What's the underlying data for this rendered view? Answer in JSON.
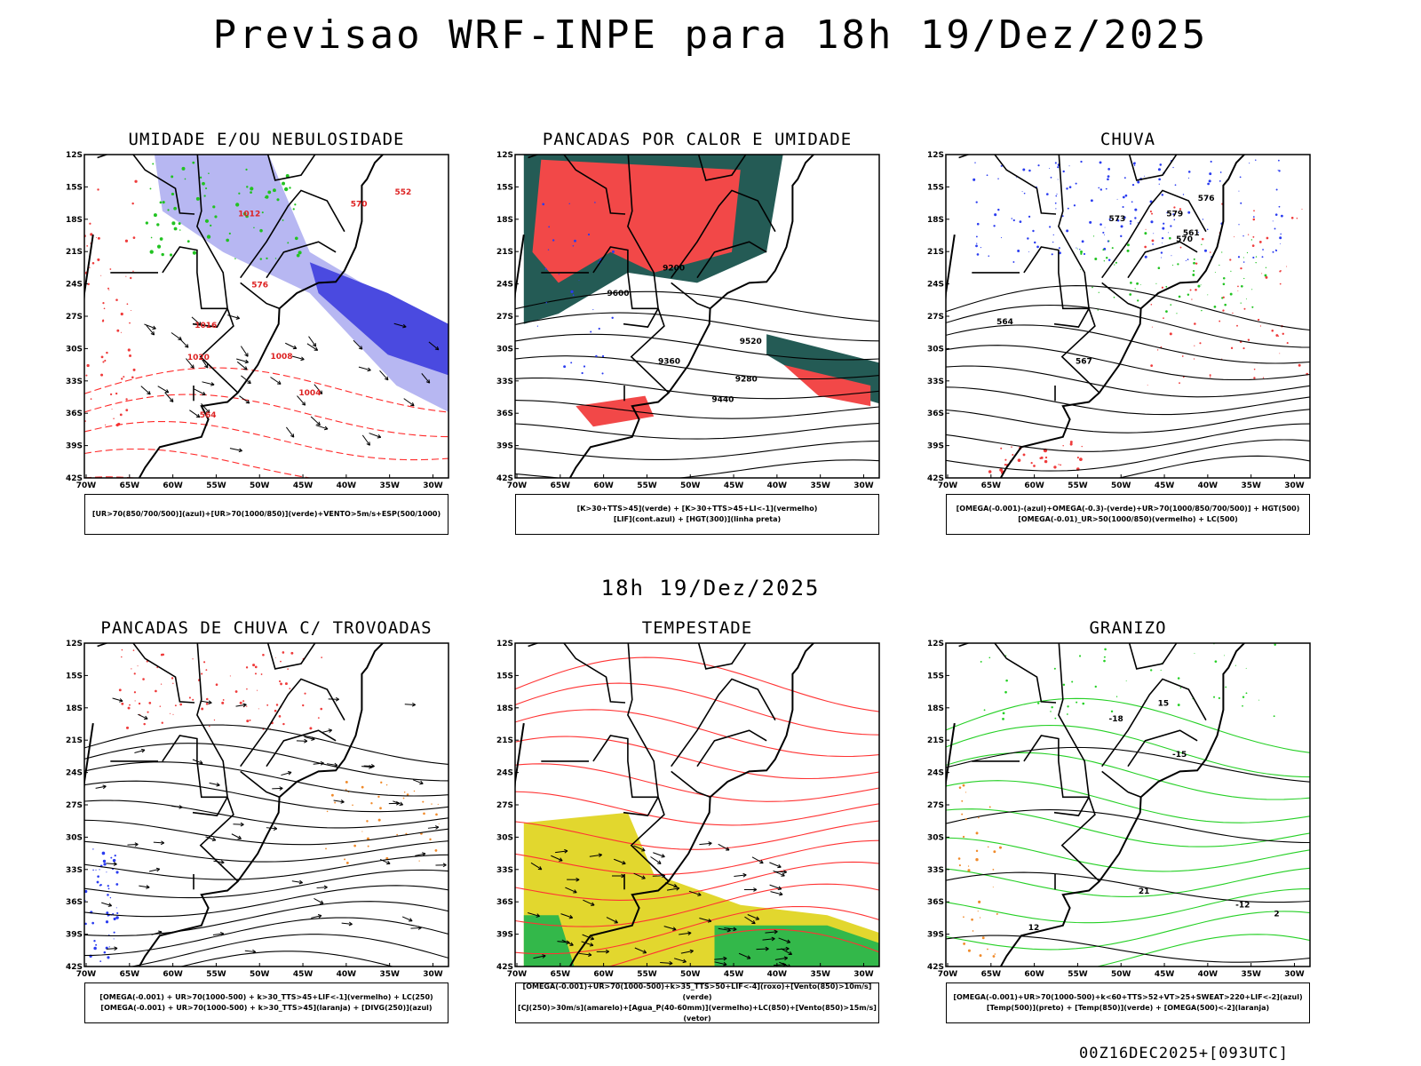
{
  "header": {
    "title": "Previsao WRF-INPE  para 18h 19/Dez/2025"
  },
  "mid_label": "18h 19/Dez/2025",
  "footer": "00Z16DEC2025+[093UTC]",
  "axes": {
    "lat_ticks": [
      "12S",
      "15S",
      "18S",
      "21S",
      "24S",
      "27S",
      "30S",
      "33S",
      "36S",
      "39S",
      "42S"
    ],
    "lon_ticks": [
      "70W",
      "65W",
      "60W",
      "55W",
      "50W",
      "45W",
      "40W",
      "35W",
      "30W"
    ]
  },
  "panels": [
    {
      "id": "umidade",
      "title": "UMIDADE E/OU NEBULOSIDADE",
      "legend": [
        "[UR>70(850/700/500)](azul)+[UR>70(1000/850)](verde)+VENTO>5m/s+ESP(500/1000)"
      ],
      "contour_labels": [
        "1004",
        "1008",
        "1012",
        "1016",
        "1020",
        "570",
        "576",
        "564",
        "552"
      ]
    },
    {
      "id": "pancadas-calor",
      "title": "PANCADAS POR CALOR E UMIDADE",
      "legend": [
        "[K>30+TTS>45](verde) + [K>30+TTS>45+LI<-1](vermelho)",
        "[LIF](cont.azul) + [HGT(300)](linha preta)"
      ],
      "contour_labels": [
        "9600",
        "9520",
        "9440",
        "9360",
        "9280",
        "9200"
      ]
    },
    {
      "id": "chuva",
      "title": "CHUVA",
      "legend": [
        "[OMEGA(-0.001)-(azul)+OMEGA(-0.3)-(verde)+UR>70(1000/850/700/500)] + HGT(500)",
        "[OMEGA(-0.01)_UR>50(1000/850)(vermelho) + LC(500)"
      ],
      "contour_labels": [
        "579",
        "576",
        "573",
        "570",
        "567",
        "564",
        "561"
      ]
    },
    {
      "id": "trovoadas",
      "title": "PANCADAS DE CHUVA C/ TROVOADAS",
      "legend": [
        "[OMEGA(-0.001) + UR>70(1000-500) + k>30_TTS>45+LIF<-1](vermelho) + LC(250)",
        "[OMEGA(-0.001) + UR>70(1000-500) + k>30_TTS>45](laranja) + [DIVG(250)](azul)"
      ],
      "contour_labels": []
    },
    {
      "id": "tempestade",
      "title": "TEMPESTADE",
      "legend": [
        "[OMEGA(-0.001)+UR>70(1000-500)+k>35_TTS>50+LIF<-4](roxo)+[Vento(850)>10m/s](verde)",
        "[CJ(250)>30m/s](amarelo)+[Agua_P(40-60mm)](vermelho)+LC(850)+[Vento(850)>15m/s](vetor)"
      ],
      "contour_labels": []
    },
    {
      "id": "granizo",
      "title": "GRANIZO",
      "legend": [
        "[OMEGA(-0.001)+UR>70(1000-500)+k<60+TTS>52+VT>25+SWEAT>220+LIF<-2](azul)",
        "[Temp(500)](preto) + [Temp(850)](verde) + [OMEGA(500)<-2](laranja)"
      ],
      "contour_labels": [
        "-12",
        "-15",
        "-18",
        "15",
        "12",
        "21",
        "2"
      ]
    }
  ]
}
